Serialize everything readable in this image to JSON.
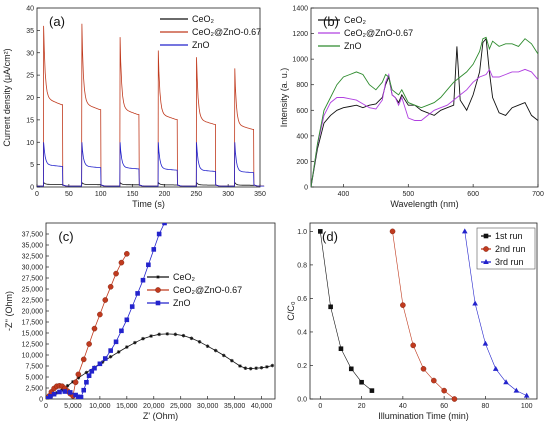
{
  "chart_data": [
    {
      "type": "line",
      "panel_label": "(a)",
      "xlabel": "Time (s)",
      "ylabel": "Current density (μA/cm²)",
      "xlim": [
        0,
        350
      ],
      "ylim": [
        0,
        40
      ],
      "xticks": [
        "0",
        "50",
        "100",
        "150",
        "200",
        "250",
        "300",
        "350"
      ],
      "yticks": [
        "0",
        "5",
        "10",
        "15",
        "20",
        "25",
        "30",
        "35",
        "40"
      ],
      "legend": "top-right",
      "series": [
        {
          "name": "CeO₂",
          "color": "#111111",
          "on_value": 0.6,
          "peak": 1.0
        },
        {
          "name": "CeO₂@ZnO-0.67",
          "color": "#c03a1e",
          "on_value": 20,
          "peak": 36
        },
        {
          "name": "ZnO",
          "color": "#2323cc",
          "on_value": 5.0,
          "peak": 10
        }
      ],
      "light_on_times": [
        10,
        70,
        130,
        190,
        250,
        310
      ],
      "light_off_times": [
        40,
        100,
        160,
        220,
        280,
        340
      ],
      "series_peaks": {
        "CeO₂@ZnO-0.67": [
          36,
          36.5,
          33.5,
          30.5,
          29,
          26.5
        ]
      }
    },
    {
      "type": "line",
      "panel_label": "(b)",
      "xlabel": "Wavelength (nm)",
      "ylabel": "Intensity (a. u.)",
      "xlim": [
        350,
        700
      ],
      "ylim": [
        0,
        1400
      ],
      "xticks": [
        "400",
        "500",
        "600",
        "700"
      ],
      "yticks": [
        "0",
        "200",
        "400",
        "600",
        "800",
        "1000",
        "1200",
        "1400"
      ],
      "legend": "top-left",
      "series": [
        {
          "name": "CeO₂",
          "color": "#111111",
          "x": [
            350,
            360,
            370,
            380,
            390,
            400,
            410,
            420,
            430,
            440,
            450,
            460,
            465,
            470,
            475,
            480,
            485,
            490,
            500,
            510,
            520,
            530,
            540,
            550,
            560,
            570,
            575,
            580,
            590,
            600,
            610,
            615,
            620,
            625,
            630,
            640,
            650,
            660,
            670,
            680,
            690,
            700
          ],
          "y": [
            0,
            300,
            500,
            560,
            600,
            620,
            630,
            640,
            620,
            640,
            650,
            700,
            800,
            860,
            720,
            700,
            660,
            720,
            640,
            640,
            600,
            580,
            560,
            600,
            620,
            640,
            1100,
            680,
            600,
            720,
            900,
            1130,
            1160,
            900,
            700,
            580,
            560,
            620,
            640,
            660,
            560,
            520
          ]
        },
        {
          "name": "CeO₂@ZnO-0.67",
          "color": "#b040e0",
          "x": [
            350,
            360,
            370,
            380,
            390,
            400,
            410,
            420,
            430,
            440,
            450,
            460,
            465,
            470,
            475,
            480,
            485,
            490,
            500,
            510,
            520,
            530,
            540,
            550,
            560,
            570,
            580,
            590,
            600,
            610,
            620,
            625,
            630,
            640,
            650,
            660,
            670,
            680,
            690,
            700
          ],
          "y": [
            0,
            330,
            560,
            660,
            700,
            700,
            690,
            680,
            650,
            620,
            610,
            680,
            820,
            880,
            720,
            700,
            640,
            700,
            540,
            520,
            520,
            560,
            600,
            620,
            640,
            680,
            720,
            760,
            820,
            860,
            880,
            920,
            860,
            860,
            880,
            900,
            900,
            920,
            900,
            840
          ]
        },
        {
          "name": "ZnO",
          "color": "#2e8b2e",
          "x": [
            350,
            360,
            370,
            380,
            390,
            400,
            410,
            420,
            430,
            440,
            450,
            460,
            465,
            470,
            475,
            480,
            485,
            490,
            500,
            510,
            520,
            530,
            540,
            550,
            560,
            570,
            580,
            590,
            600,
            610,
            615,
            620,
            625,
            630,
            640,
            650,
            660,
            670,
            680,
            690,
            700
          ],
          "y": [
            0,
            340,
            600,
            700,
            800,
            860,
            880,
            900,
            880,
            800,
            760,
            820,
            880,
            860,
            760,
            740,
            720,
            760,
            660,
            640,
            620,
            640,
            660,
            700,
            760,
            820,
            860,
            900,
            960,
            1060,
            1160,
            1170,
            1080,
            1140,
            1100,
            1120,
            1120,
            1100,
            1160,
            1120,
            1040
          ]
        }
      ]
    },
    {
      "type": "scatter",
      "panel_label": "(c)",
      "xlabel": "Z' (Ohm)",
      "ylabel": "-Z'' (Ohm)",
      "xlim": [
        0,
        42500
      ],
      "ylim": [
        0,
        40000
      ],
      "xticks": [
        "0",
        "5,000",
        "10,000",
        "15,000",
        "20,000",
        "25,000",
        "30,000",
        "35,000",
        "40,000"
      ],
      "yticks": [
        "0",
        "2,500",
        "5,000",
        "7,500",
        "10,000",
        "12,500",
        "15,000",
        "17,500",
        "20,000",
        "22,500",
        "25,000",
        "27,500",
        "30,000",
        "32,500",
        "35,000",
        "37,500"
      ],
      "legend": "center-right",
      "series": [
        {
          "name": "CeO₂",
          "color": "#111111",
          "marker": "star",
          "x": [
            400,
            1000,
            2000,
            3000,
            4000,
            5000,
            6000,
            7500,
            9000,
            10500,
            12000,
            13500,
            15000,
            16500,
            18000,
            19500,
            21000,
            22500,
            24000,
            25500,
            27000,
            28500,
            30000,
            31500,
            33000,
            34500,
            36000,
            37000,
            38000,
            39000,
            40000,
            41000,
            42000
          ],
          "y": [
            200,
            600,
            1400,
            2200,
            3000,
            3900,
            4800,
            6000,
            7200,
            8400,
            9600,
            10700,
            11800,
            12800,
            13700,
            14300,
            14700,
            14800,
            14700,
            14400,
            13800,
            13000,
            12000,
            11000,
            9900,
            8700,
            7500,
            7000,
            6900,
            7000,
            7100,
            7300,
            7600
          ]
        },
        {
          "name": "CeO₂@ZnO-0.67",
          "color": "#c03a1e",
          "marker": "circle",
          "x": [
            300,
            600,
            1000,
            1500,
            2000,
            2500,
            3000,
            3500,
            4000,
            4500,
            5000,
            5500,
            6000,
            7000,
            8000,
            9000,
            10000,
            11000,
            12000,
            13000,
            14000,
            15000
          ],
          "y": [
            200,
            700,
            1600,
            2400,
            2900,
            3000,
            2900,
            2400,
            1800,
            1200,
            700,
            3800,
            5600,
            9000,
            12500,
            16000,
            19200,
            22500,
            25500,
            28500,
            31000,
            33000
          ]
        },
        {
          "name": "ZnO",
          "color": "#2323cc",
          "marker": "square",
          "x": [
            300,
            800,
            1500,
            2500,
            3500,
            4500,
            5500,
            6000,
            6500,
            7000,
            7500,
            8000,
            8500,
            9000,
            10000,
            11000,
            12000,
            13000,
            14000,
            15000,
            16000,
            17000,
            18000,
            19000,
            20000,
            21000,
            22000
          ],
          "y": [
            150,
            600,
            1100,
            1600,
            1700,
            1500,
            900,
            500,
            400,
            2000,
            3800,
            5300,
            6300,
            7000,
            8000,
            9200,
            11000,
            13000,
            15500,
            18000,
            21000,
            24000,
            27000,
            30500,
            34000,
            37500,
            40000
          ]
        }
      ]
    },
    {
      "type": "scatter",
      "panel_label": "(d)",
      "xlabel": "Illumination Time (min)",
      "ylabel": "C/C₀",
      "xlim": [
        -5,
        105
      ],
      "ylim": [
        0,
        1.05
      ],
      "xticks": [
        "0",
        "20",
        "40",
        "60",
        "80",
        "100"
      ],
      "yticks": [
        "0.0",
        "0.2",
        "0.4",
        "0.6",
        "0.8",
        "1.0"
      ],
      "legend": "top-right",
      "series": [
        {
          "name": "1st run",
          "color": "#111111",
          "marker": "square",
          "x": [
            0,
            5,
            10,
            15,
            20,
            25
          ],
          "y": [
            1.0,
            0.55,
            0.3,
            0.18,
            0.1,
            0.05
          ]
        },
        {
          "name": "2nd run",
          "color": "#c03a1e",
          "marker": "circle",
          "x": [
            35,
            40,
            45,
            50,
            55,
            60,
            65
          ],
          "y": [
            1.0,
            0.56,
            0.32,
            0.18,
            0.11,
            0.05,
            0.0
          ]
        },
        {
          "name": "3rd run",
          "color": "#2323cc",
          "marker": "triangle",
          "x": [
            70,
            75,
            80,
            85,
            90,
            95,
            100
          ],
          "y": [
            1.0,
            0.57,
            0.33,
            0.18,
            0.1,
            0.05,
            0.02
          ]
        }
      ]
    }
  ]
}
